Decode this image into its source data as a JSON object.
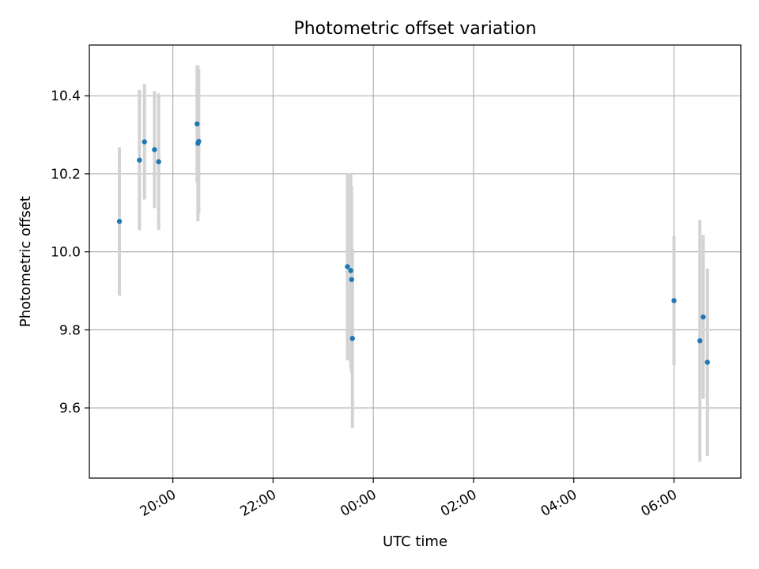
{
  "chart_data": {
    "type": "scatter",
    "title": "Photometric offset variation",
    "xlabel": "UTC time",
    "ylabel": "Photometric offset",
    "x_axis_type": "time",
    "grid": true,
    "colors": {
      "marker": "#1f77b4",
      "errorbar": "#d3d3d3",
      "grid": "#b0b0b0"
    },
    "xlim": [
      "18:20",
      "07:20"
    ],
    "ylim": [
      9.42,
      10.53
    ],
    "x_ticks": [
      "20:00",
      "22:00",
      "00:00",
      "02:00",
      "04:00",
      "06:00"
    ],
    "y_ticks": [
      "9.6",
      "9.8",
      "10.0",
      "10.2",
      "10.4"
    ],
    "series": [
      {
        "points": [
          {
            "x": "18:56",
            "y": 10.078,
            "yerr": 0.19
          },
          {
            "x": "19:20",
            "y": 10.235,
            "yerr": 0.18
          },
          {
            "x": "19:26",
            "y": 10.282,
            "yerr": 0.148
          },
          {
            "x": "19:38",
            "y": 10.262,
            "yerr": 0.15
          },
          {
            "x": "19:43",
            "y": 10.231,
            "yerr": 0.175
          },
          {
            "x": "20:29",
            "y": 10.328,
            "yerr": 0.15
          },
          {
            "x": "20:30",
            "y": 10.278,
            "yerr": 0.2
          },
          {
            "x": "20:31",
            "y": 10.283,
            "yerr": 0.185
          },
          {
            "x": "23:29",
            "y": 9.962,
            "yerr": 0.24
          },
          {
            "x": "23:33",
            "y": 9.952,
            "yerr": 0.25
          },
          {
            "x": "23:34",
            "y": 9.929,
            "yerr": 0.24
          },
          {
            "x": "23:35",
            "y": 9.778,
            "yerr": 0.23
          },
          {
            "x": "06:00",
            "y": 9.875,
            "yerr": 0.165
          },
          {
            "x": "06:31",
            "y": 9.772,
            "yerr": 0.31
          },
          {
            "x": "06:35",
            "y": 9.833,
            "yerr": 0.21
          },
          {
            "x": "06:40",
            "y": 9.717,
            "yerr": 0.24
          }
        ]
      }
    ]
  }
}
